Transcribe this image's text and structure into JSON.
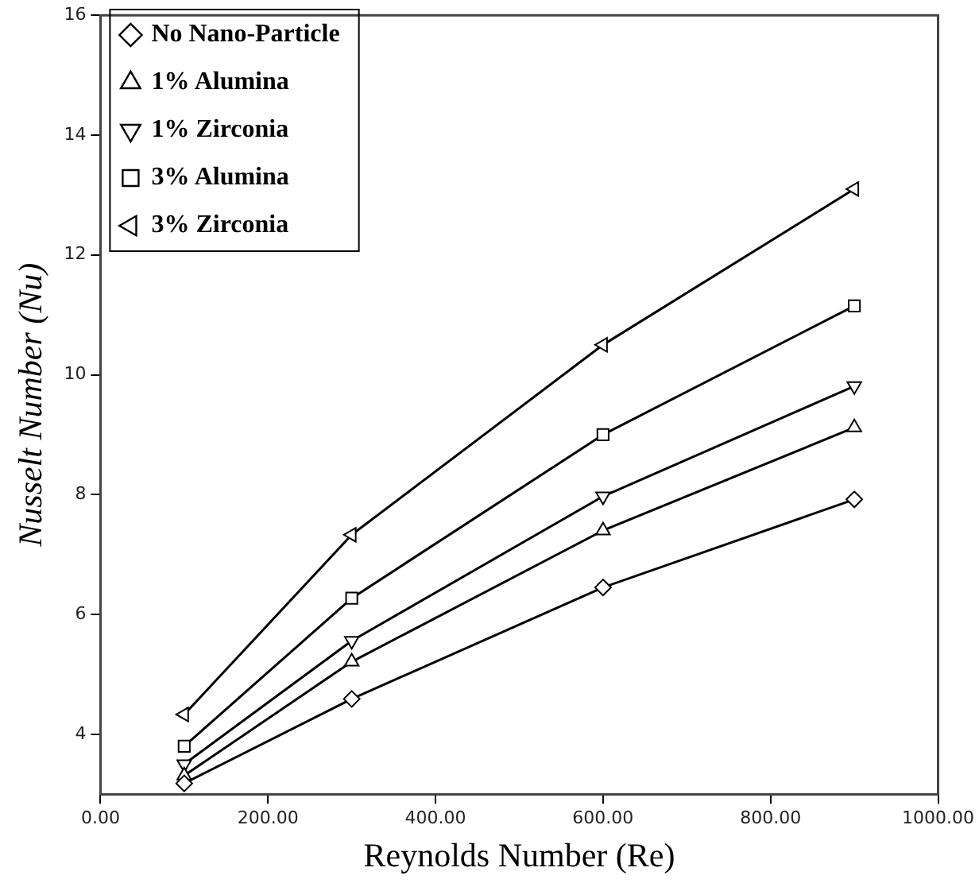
{
  "chart_data": {
    "type": "line",
    "xlabel": "Reynolds Number (Re)",
    "ylabel": "Nusselt Number (Nu)",
    "x": [
      100,
      300,
      600,
      900
    ],
    "series": [
      {
        "name": "No Nano-Particle",
        "color": "#000000",
        "marker": "diamond",
        "values": [
          3.18,
          4.59,
          6.45,
          7.92
        ]
      },
      {
        "name": "1% Alumina",
        "color": "#000000",
        "marker": "triangle",
        "values": [
          3.31,
          5.21,
          7.4,
          9.12
        ]
      },
      {
        "name": "1% Zirconia",
        "color": "#000000",
        "marker": "triangle-down",
        "values": [
          3.5,
          5.56,
          7.97,
          9.81
        ]
      },
      {
        "name": "3% Alumina",
        "color": "#000000",
        "marker": "square",
        "values": [
          3.8,
          6.27,
          9.0,
          11.15
        ]
      },
      {
        "name": "3% Zirconia",
        "color": "#000000",
        "marker": "triangle-left",
        "values": [
          4.33,
          7.33,
          10.5,
          13.1
        ]
      }
    ],
    "xlim": [
      0,
      1000
    ],
    "xticks": [
      {
        "value": 0,
        "label": "0.00"
      },
      {
        "value": 200,
        "label": "200.00"
      },
      {
        "value": 400,
        "label": "400.00"
      },
      {
        "value": 600,
        "label": "600.00"
      },
      {
        "value": 800,
        "label": "800.00"
      },
      {
        "value": 1000,
        "label": "1000.00"
      }
    ],
    "ylim": [
      3,
      16
    ],
    "yticks": [
      4,
      6,
      8,
      10,
      12,
      14,
      16
    ],
    "grid": false,
    "legend": "top left",
    "line_style": "solid"
  }
}
